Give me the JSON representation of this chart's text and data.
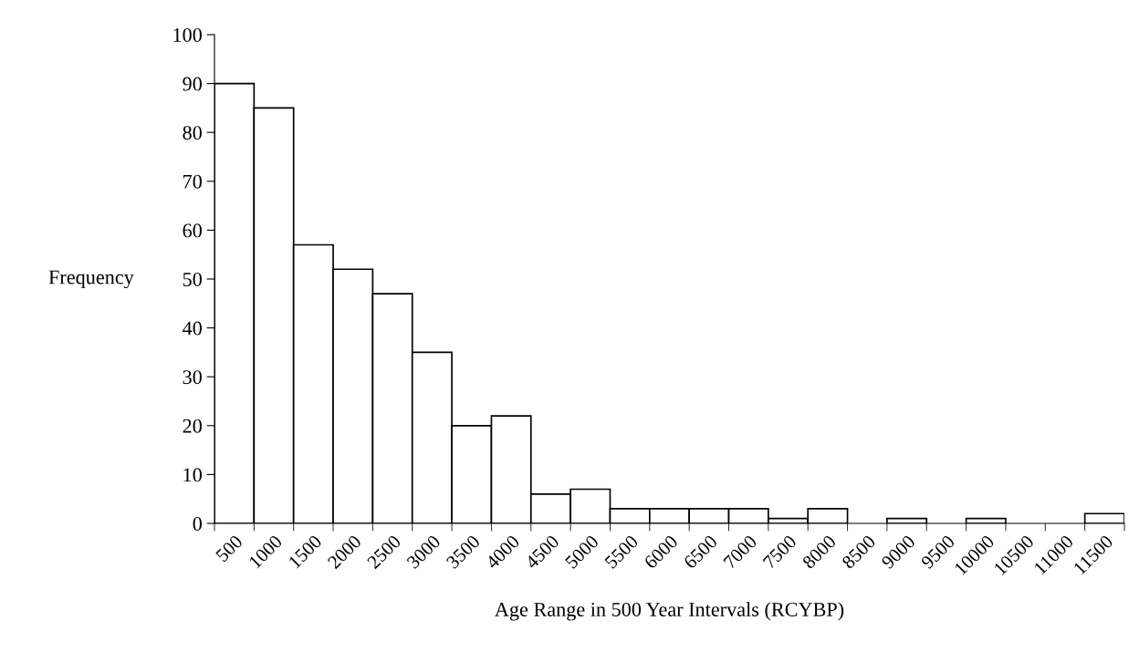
{
  "chart_data": {
    "type": "bar",
    "xlabel": "Age Range in 500 Year Intervals (RCYBP)",
    "ylabel": "Frequency",
    "categories": [
      "500",
      "1000",
      "1500",
      "2000",
      "2500",
      "3000",
      "3500",
      "4000",
      "4500",
      "5000",
      "5500",
      "6000",
      "6500",
      "7000",
      "7500",
      "8000",
      "8500",
      "9000",
      "9500",
      "10000",
      "10500",
      "11000",
      "11500"
    ],
    "values": [
      90,
      85,
      57,
      52,
      47,
      35,
      20,
      22,
      6,
      7,
      3,
      3,
      3,
      3,
      1,
      3,
      0,
      1,
      0,
      1,
      0,
      0,
      2
    ],
    "color": "#ffffff",
    "ylim": [
      0,
      100
    ],
    "yticks": [
      0,
      10,
      20,
      30,
      40,
      50,
      60,
      70,
      80,
      90,
      100
    ],
    "grid": false,
    "legend": false
  }
}
